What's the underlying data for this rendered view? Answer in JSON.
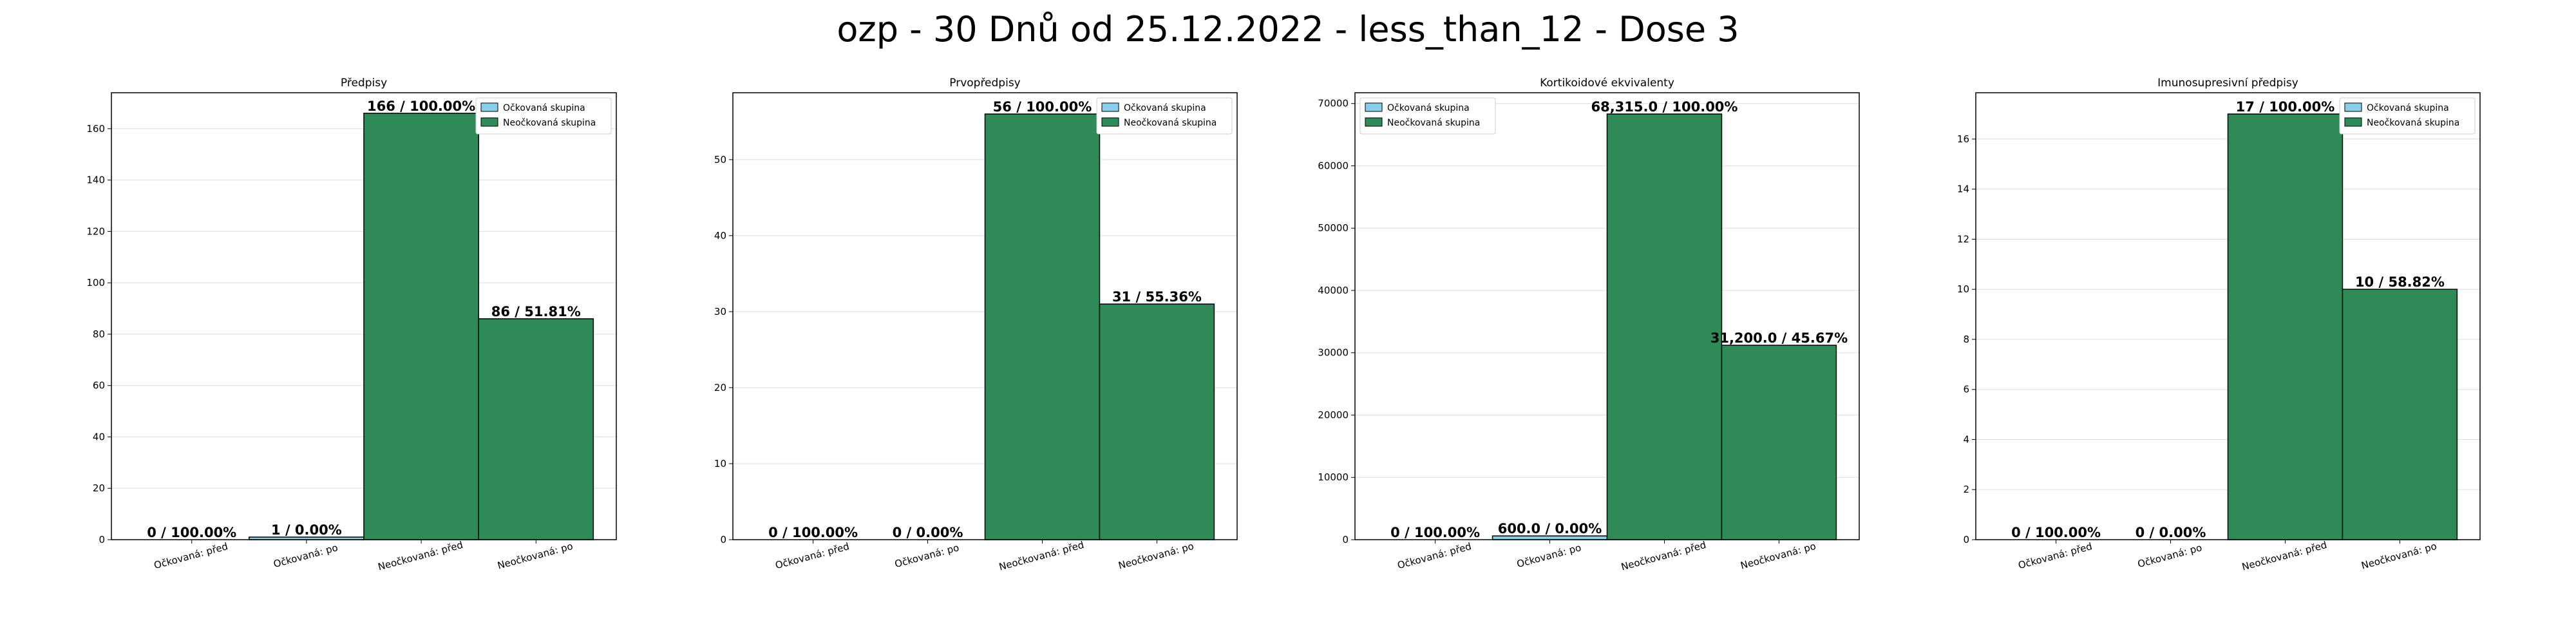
{
  "suptitle": "ozp - 30 Dnů od 25.12.2022 - less_than_12 - Dose 3",
  "colors": {
    "vaccinated": "#87CEEB",
    "unvaccinated": "#2E8B57",
    "edge": "#000000",
    "grid": "#dddddd"
  },
  "chart_data": [
    {
      "type": "bar",
      "title": "Předpisy",
      "categories": [
        "Očkovaná: před",
        "Očkovaná: po",
        "Neočkovaná: před",
        "Neočkovaná: po"
      ],
      "values": [
        0,
        1,
        166,
        86
      ],
      "group": [
        "vaccinated",
        "vaccinated",
        "unvaccinated",
        "unvaccinated"
      ],
      "bar_labels": [
        "0 / 100.00%",
        "1 / 0.00%",
        "166 / 100.00%",
        "86 / 51.81%"
      ],
      "ylim": [
        0,
        174
      ],
      "yticks": [
        0,
        20,
        40,
        60,
        80,
        100,
        120,
        140,
        160
      ],
      "ytick_labels": [
        "0",
        "20",
        "40",
        "60",
        "80",
        "100",
        "120",
        "140",
        "160"
      ],
      "legend": [
        "Očkovaná skupina",
        "Neočkovaná skupina"
      ],
      "legend_loc": "upper right",
      "grid": true
    },
    {
      "type": "bar",
      "title": "Prvopředpisy",
      "categories": [
        "Očkovaná: před",
        "Očkovaná: po",
        "Neočkovaná: před",
        "Neočkovaná: po"
      ],
      "values": [
        0,
        0,
        56,
        31
      ],
      "group": [
        "vaccinated",
        "vaccinated",
        "unvaccinated",
        "unvaccinated"
      ],
      "bar_labels": [
        "0 / 100.00%",
        "0 / 0.00%",
        "56 / 100.00%",
        "31 / 55.36%"
      ],
      "ylim": [
        0,
        58.8
      ],
      "yticks": [
        0,
        10,
        20,
        30,
        40,
        50
      ],
      "ytick_labels": [
        "0",
        "10",
        "20",
        "30",
        "40",
        "50"
      ],
      "legend": [
        "Očkovaná skupina",
        "Neočkovaná skupina"
      ],
      "legend_loc": "upper right",
      "grid": true
    },
    {
      "type": "bar",
      "title": "Kortikoidové ekvivalenty",
      "categories": [
        "Očkovaná: před",
        "Očkovaná: po",
        "Neočkovaná: před",
        "Neočkovaná: po"
      ],
      "values": [
        0,
        600,
        68315,
        31200
      ],
      "group": [
        "vaccinated",
        "vaccinated",
        "unvaccinated",
        "unvaccinated"
      ],
      "bar_labels": [
        "0 / 100.00%",
        "600.0 / 0.00%",
        "68,315.0 / 100.00%",
        "31,200.0 / 45.67%"
      ],
      "ylim": [
        0,
        71731
      ],
      "yticks": [
        0,
        10000,
        20000,
        30000,
        40000,
        50000,
        60000,
        70000
      ],
      "ytick_labels": [
        "0",
        "10000",
        "20000",
        "30000",
        "40000",
        "50000",
        "60000",
        "70000"
      ],
      "legend": [
        "Očkovaná skupina",
        "Neočkovaná skupina"
      ],
      "legend_loc": "upper left",
      "grid": true
    },
    {
      "type": "bar",
      "title": "Imunosupresivní předpisy",
      "categories": [
        "Očkovaná: před",
        "Očkovaná: po",
        "Neočkovaná: před",
        "Neočkovaná: po"
      ],
      "values": [
        0,
        0,
        17,
        10
      ],
      "group": [
        "vaccinated",
        "vaccinated",
        "unvaccinated",
        "unvaccinated"
      ],
      "bar_labels": [
        "0 / 100.00%",
        "0 / 0.00%",
        "17 / 100.00%",
        "10 / 58.82%"
      ],
      "ylim": [
        0,
        17.85
      ],
      "yticks": [
        0,
        2,
        4,
        6,
        8,
        10,
        12,
        14,
        16
      ],
      "ytick_labels": [
        "0",
        "2",
        "4",
        "6",
        "8",
        "10",
        "12",
        "14",
        "16"
      ],
      "legend": [
        "Očkovaná skupina",
        "Neočkovaná skupina"
      ],
      "legend_loc": "upper right",
      "grid": true
    }
  ]
}
